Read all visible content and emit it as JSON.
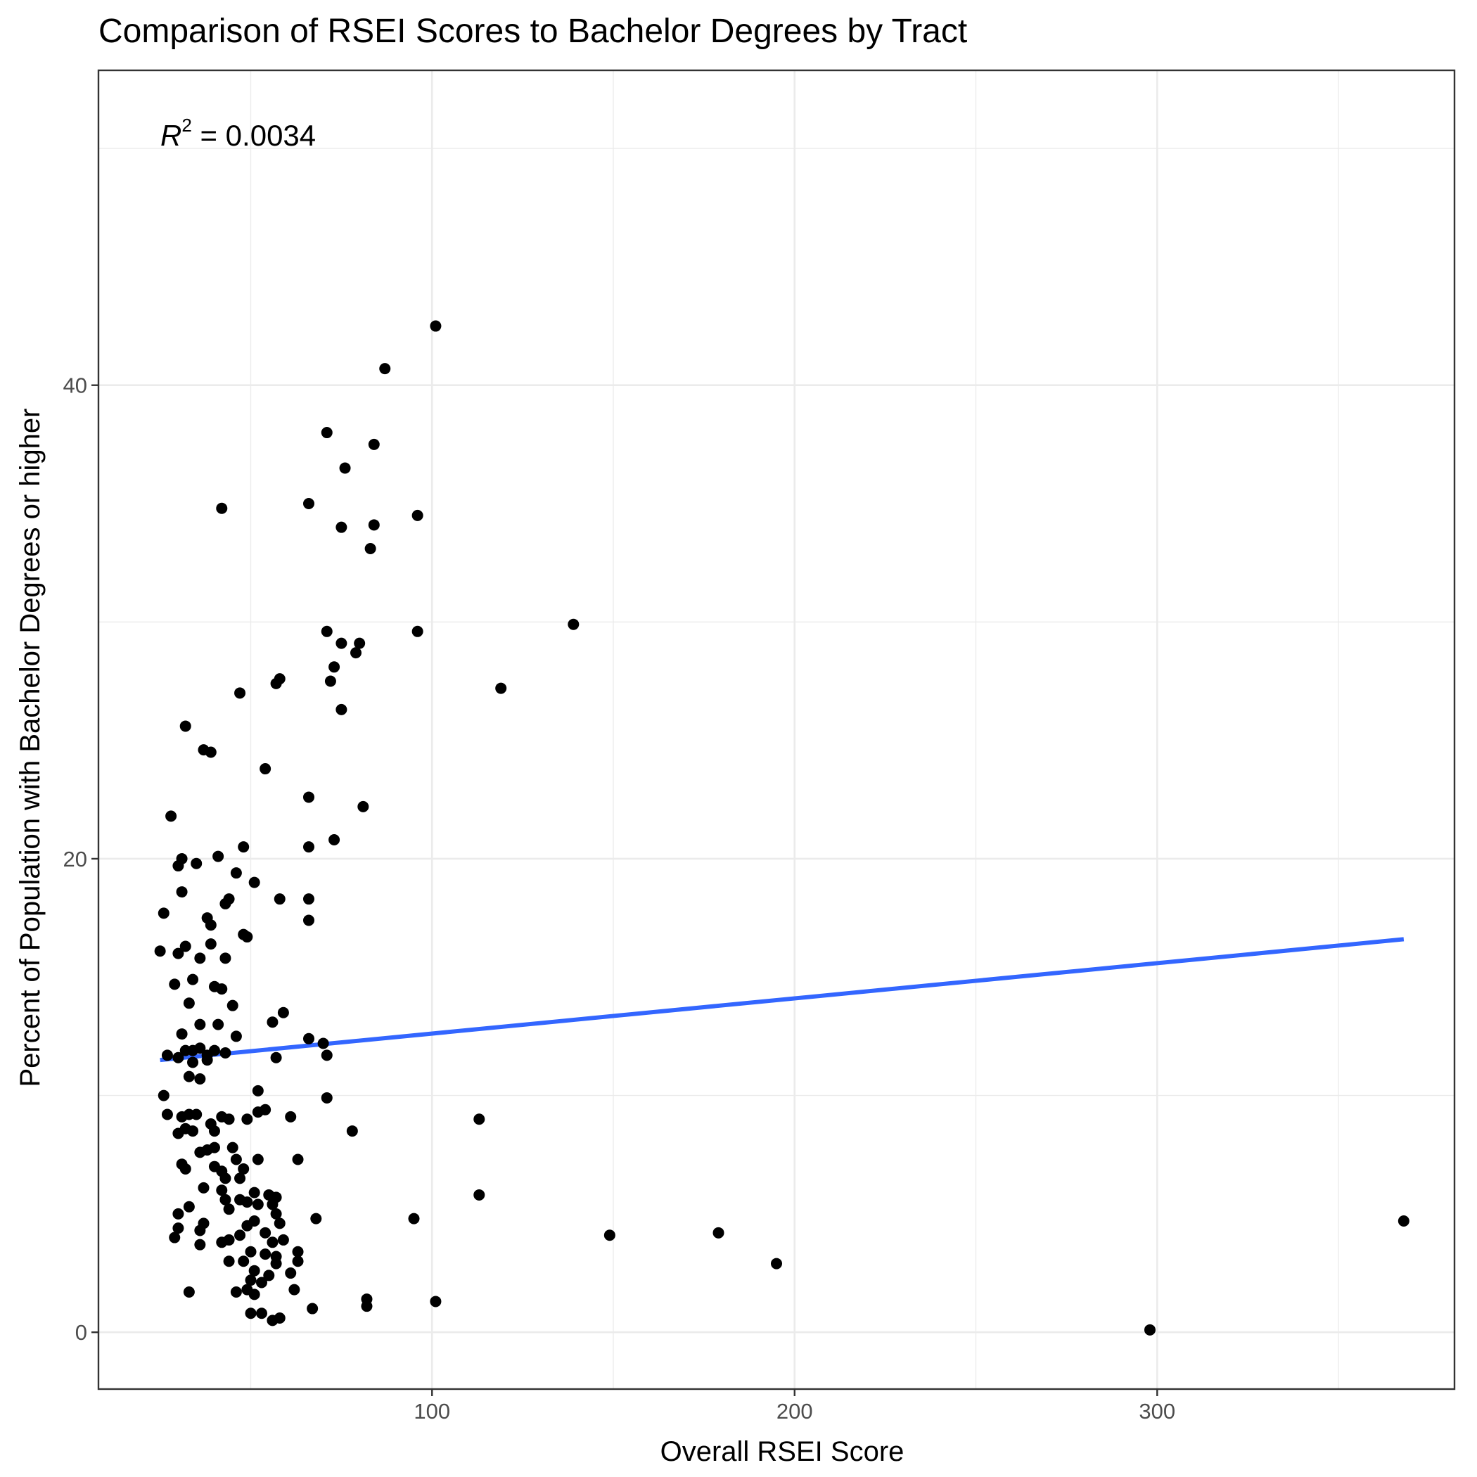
{
  "chart_data": {
    "type": "scatter",
    "title": "Comparison of RSEI Scores to Bachelor Degrees by Tract",
    "xlabel": "Overall RSEI Score",
    "ylabel": "Percent of Population with Bachelor Degrees or higher",
    "xlim": [
      8,
      382
    ],
    "ylim": [
      -2.4,
      53.3
    ],
    "x_ticks": [
      100,
      200,
      300
    ],
    "y_ticks": [
      0,
      20,
      40
    ],
    "x_tick_labels": [
      "100",
      "200",
      "300"
    ],
    "y_tick_labels": [
      "0",
      "20",
      "40"
    ],
    "grid": true,
    "annotation": {
      "label": "R",
      "exponent": "2",
      "text": " = 0.0034"
    },
    "colors": {
      "points": "#000000",
      "trend": "#3366ff",
      "grid": "#ebebeb",
      "frame": "#333333"
    },
    "trend_line": {
      "x": [
        25,
        368
      ],
      "y": [
        11.5,
        16.6
      ]
    },
    "points": [
      [
        101,
        42.5
      ],
      [
        87,
        40.7
      ],
      [
        71,
        38.0
      ],
      [
        84,
        37.5
      ],
      [
        76,
        36.5
      ],
      [
        66,
        35.0
      ],
      [
        42,
        34.8
      ],
      [
        96,
        34.5
      ],
      [
        75,
        34.0
      ],
      [
        84,
        34.1
      ],
      [
        83,
        33.1
      ],
      [
        139,
        29.9
      ],
      [
        96,
        29.6
      ],
      [
        71,
        29.6
      ],
      [
        75,
        29.1
      ],
      [
        80,
        29.1
      ],
      [
        79,
        28.7
      ],
      [
        73,
        28.1
      ],
      [
        58,
        27.6
      ],
      [
        57,
        27.4
      ],
      [
        72,
        27.5
      ],
      [
        119,
        27.2
      ],
      [
        47,
        27.0
      ],
      [
        75,
        26.3
      ],
      [
        32,
        25.6
      ],
      [
        37,
        24.6
      ],
      [
        39,
        24.5
      ],
      [
        54,
        23.8
      ],
      [
        66,
        22.6
      ],
      [
        81,
        22.2
      ],
      [
        28,
        21.8
      ],
      [
        73,
        20.8
      ],
      [
        66,
        20.5
      ],
      [
        48,
        20.5
      ],
      [
        41,
        20.1
      ],
      [
        31,
        20.0
      ],
      [
        30,
        19.7
      ],
      [
        35,
        19.8
      ],
      [
        46,
        19.4
      ],
      [
        51,
        19.0
      ],
      [
        31,
        18.6
      ],
      [
        44,
        18.3
      ],
      [
        58,
        18.3
      ],
      [
        66,
        18.3
      ],
      [
        43,
        18.1
      ],
      [
        26,
        17.7
      ],
      [
        38,
        17.5
      ],
      [
        66,
        17.4
      ],
      [
        39,
        17.2
      ],
      [
        48,
        16.8
      ],
      [
        49,
        16.7
      ],
      [
        39,
        16.4
      ],
      [
        32,
        16.3
      ],
      [
        25,
        16.1
      ],
      [
        30,
        16.0
      ],
      [
        36,
        15.8
      ],
      [
        43,
        15.8
      ],
      [
        34,
        14.9
      ],
      [
        29,
        14.7
      ],
      [
        40,
        14.6
      ],
      [
        42,
        14.5
      ],
      [
        33,
        13.9
      ],
      [
        45,
        13.8
      ],
      [
        59,
        13.5
      ],
      [
        56,
        13.1
      ],
      [
        36,
        13.0
      ],
      [
        41,
        13.0
      ],
      [
        31,
        12.6
      ],
      [
        46,
        12.5
      ],
      [
        66,
        12.4
      ],
      [
        70,
        12.2
      ],
      [
        34,
        11.9
      ],
      [
        32,
        11.9
      ],
      [
        36,
        12.0
      ],
      [
        40,
        11.9
      ],
      [
        38,
        11.7
      ],
      [
        43,
        11.8
      ],
      [
        27,
        11.7
      ],
      [
        57,
        11.6
      ],
      [
        71,
        11.7
      ],
      [
        30,
        11.6
      ],
      [
        34,
        11.4
      ],
      [
        38,
        11.5
      ],
      [
        33,
        10.8
      ],
      [
        36,
        10.7
      ],
      [
        52,
        10.2
      ],
      [
        26,
        10.0
      ],
      [
        71,
        9.9
      ],
      [
        54,
        9.4
      ],
      [
        33,
        9.2
      ],
      [
        27,
        9.2
      ],
      [
        31,
        9.1
      ],
      [
        35,
        9.2
      ],
      [
        42,
        9.1
      ],
      [
        52,
        9.3
      ],
      [
        61,
        9.1
      ],
      [
        113,
        9.0
      ],
      [
        49,
        9.0
      ],
      [
        44,
        9.0
      ],
      [
        39,
        8.8
      ],
      [
        34,
        8.5
      ],
      [
        32,
        8.6
      ],
      [
        30,
        8.4
      ],
      [
        40,
        8.5
      ],
      [
        78,
        8.5
      ],
      [
        40,
        7.8
      ],
      [
        38,
        7.7
      ],
      [
        45,
        7.8
      ],
      [
        36,
        7.6
      ],
      [
        46,
        7.3
      ],
      [
        52,
        7.3
      ],
      [
        63,
        7.3
      ],
      [
        31,
        7.1
      ],
      [
        40,
        7.0
      ],
      [
        42,
        6.8
      ],
      [
        32,
        6.9
      ],
      [
        48,
        6.9
      ],
      [
        43,
        6.5
      ],
      [
        47,
        6.5
      ],
      [
        37,
        6.1
      ],
      [
        42,
        6.0
      ],
      [
        51,
        5.9
      ],
      [
        55,
        5.8
      ],
      [
        57,
        5.7
      ],
      [
        113,
        5.8
      ],
      [
        43,
        5.6
      ],
      [
        47,
        5.6
      ],
      [
        33,
        5.3
      ],
      [
        49,
        5.5
      ],
      [
        52,
        5.4
      ],
      [
        56,
        5.4
      ],
      [
        44,
        5.2
      ],
      [
        30,
        5.0
      ],
      [
        57,
        5.0
      ],
      [
        68,
        4.8
      ],
      [
        95,
        4.8
      ],
      [
        368,
        4.7
      ],
      [
        51,
        4.7
      ],
      [
        37,
        4.6
      ],
      [
        49,
        4.5
      ],
      [
        58,
        4.6
      ],
      [
        30,
        4.4
      ],
      [
        36,
        4.3
      ],
      [
        47,
        4.1
      ],
      [
        54,
        4.2
      ],
      [
        29,
        4.0
      ],
      [
        149,
        4.1
      ],
      [
        179,
        4.2
      ],
      [
        44,
        3.9
      ],
      [
        56,
        3.8
      ],
      [
        59,
        3.9
      ],
      [
        36,
        3.7
      ],
      [
        42,
        3.8
      ],
      [
        50,
        3.4
      ],
      [
        63,
        3.4
      ],
      [
        54,
        3.3
      ],
      [
        57,
        3.2
      ],
      [
        44,
        3.0
      ],
      [
        48,
        3.0
      ],
      [
        63,
        3.0
      ],
      [
        57,
        2.9
      ],
      [
        195,
        2.9
      ],
      [
        51,
        2.6
      ],
      [
        61,
        2.5
      ],
      [
        55,
        2.4
      ],
      [
        50,
        2.2
      ],
      [
        53,
        2.1
      ],
      [
        33,
        1.7
      ],
      [
        46,
        1.7
      ],
      [
        49,
        1.8
      ],
      [
        51,
        1.6
      ],
      [
        62,
        1.8
      ],
      [
        82,
        1.4
      ],
      [
        101,
        1.3
      ],
      [
        82,
        1.1
      ],
      [
        67,
        1.0
      ],
      [
        50,
        0.8
      ],
      [
        53,
        0.8
      ],
      [
        58,
        0.6
      ],
      [
        56,
        0.5
      ],
      [
        298,
        0.1
      ]
    ]
  }
}
